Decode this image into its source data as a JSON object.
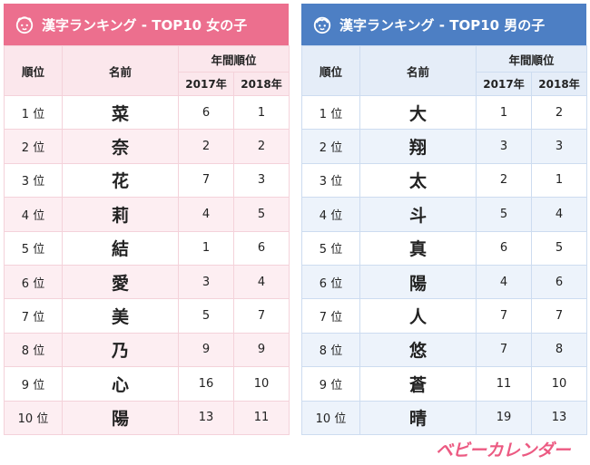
{
  "girls": {
    "title": "漢字ランキング - TOP10 女の子",
    "headers": {
      "rank": "順位",
      "name": "名前",
      "group": "年間順位",
      "y2017": "2017年",
      "y2018": "2018年"
    },
    "rows": [
      {
        "rank": "1 位",
        "name": "菜",
        "y2017": "6",
        "y2018": "1"
      },
      {
        "rank": "2 位",
        "name": "奈",
        "y2017": "2",
        "y2018": "2"
      },
      {
        "rank": "3 位",
        "name": "花",
        "y2017": "7",
        "y2018": "3"
      },
      {
        "rank": "4 位",
        "name": "莉",
        "y2017": "4",
        "y2018": "5"
      },
      {
        "rank": "5 位",
        "name": "結",
        "y2017": "1",
        "y2018": "6"
      },
      {
        "rank": "6 位",
        "name": "愛",
        "y2017": "3",
        "y2018": "4"
      },
      {
        "rank": "7 位",
        "name": "美",
        "y2017": "5",
        "y2018": "7"
      },
      {
        "rank": "8 位",
        "name": "乃",
        "y2017": "9",
        "y2018": "9"
      },
      {
        "rank": "9 位",
        "name": "心",
        "y2017": "16",
        "y2018": "10"
      },
      {
        "rank": "10 位",
        "name": "陽",
        "y2017": "13",
        "y2018": "11"
      }
    ]
  },
  "boys": {
    "title": "漢字ランキング - TOP10 男の子",
    "headers": {
      "rank": "順位",
      "name": "名前",
      "group": "年間順位",
      "y2017": "2017年",
      "y2018": "2018年"
    },
    "rows": [
      {
        "rank": "1 位",
        "name": "大",
        "y2017": "1",
        "y2018": "2"
      },
      {
        "rank": "2 位",
        "name": "翔",
        "y2017": "3",
        "y2018": "3"
      },
      {
        "rank": "3 位",
        "name": "太",
        "y2017": "2",
        "y2018": "1"
      },
      {
        "rank": "4 位",
        "name": "斗",
        "y2017": "5",
        "y2018": "4"
      },
      {
        "rank": "5 位",
        "name": "真",
        "y2017": "6",
        "y2018": "5"
      },
      {
        "rank": "6 位",
        "name": "陽",
        "y2017": "4",
        "y2018": "6"
      },
      {
        "rank": "7 位",
        "name": "人",
        "y2017": "7",
        "y2018": "7"
      },
      {
        "rank": "8 位",
        "name": "悠",
        "y2017": "7",
        "y2018": "8"
      },
      {
        "rank": "9 位",
        "name": "蒼",
        "y2017": "11",
        "y2018": "10"
      },
      {
        "rank": "10 位",
        "name": "晴",
        "y2017": "19",
        "y2018": "13"
      }
    ]
  },
  "logo": "ベビーカレンダー",
  "colors": {
    "girls_accent": "#ec6f8e",
    "boys_accent": "#4d7fc4",
    "logo": "#ec5a82"
  },
  "icons": {
    "girls": "girl-face-icon",
    "boys": "boy-face-icon"
  }
}
